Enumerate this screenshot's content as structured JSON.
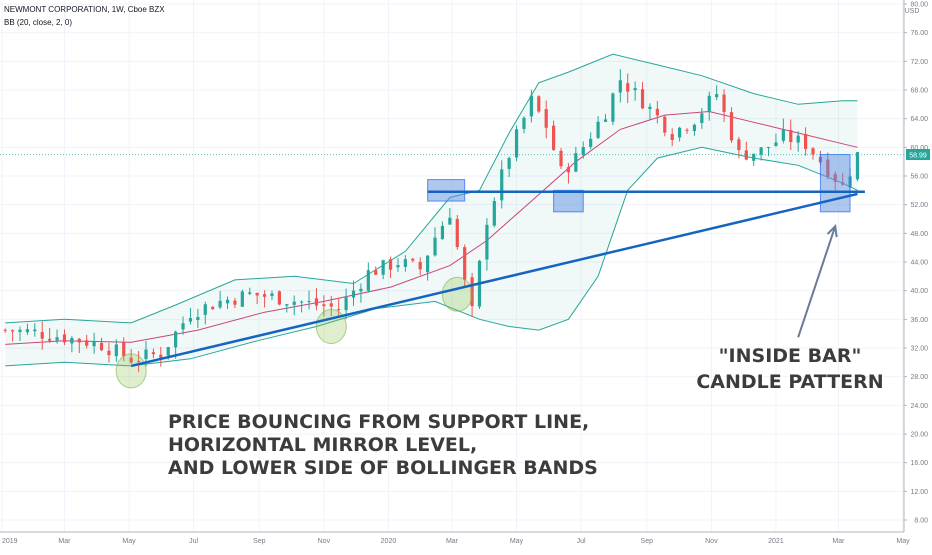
{
  "header": {
    "title": "NEWMONT CORPORATION, 1W, Cboe BZX",
    "indicator": "BB (20, close, 2, 0)"
  },
  "price_axis": {
    "currency": "USD",
    "last_price": "58.99",
    "ticks": [
      "80.00",
      "76.00",
      "72.00",
      "68.00",
      "64.00",
      "60.00",
      "56.00",
      "52.00",
      "48.00",
      "44.00",
      "40.00",
      "36.00",
      "32.00",
      "28.00",
      "24.00",
      "20.00",
      "16.00",
      "12.00",
      "8.00"
    ]
  },
  "time_axis": {
    "labels": [
      "2019",
      "Mar",
      "May",
      "Jul",
      "Sep",
      "Nov",
      "2020",
      "Mar",
      "May",
      "Jul",
      "Sep",
      "Nov",
      "2021",
      "Mar",
      "May"
    ]
  },
  "annotations": {
    "main_text": [
      "PRICE BOUNCING FROM SUPPORT LINE,",
      "HORIZONTAL MIRROR LEVEL,",
      "AND LOWER SIDE OF BOLLINGER BANDS"
    ],
    "pattern_text": [
      "\"INSIDE BAR\"",
      "CANDLE PATTERN"
    ]
  },
  "colors": {
    "up": "#26a69a",
    "down": "#ef5350",
    "band": "#26a69a",
    "basis": "#c2185b",
    "trendline": "#1565c0",
    "box": "#5b8fe0"
  },
  "chart_data": {
    "type": "candlestick",
    "title": "NEWMONT CORPORATION, 1W, Cboe BZX",
    "ylim": [
      6,
      80
    ],
    "y_scale": "linear",
    "grid": true,
    "x_range": [
      "2019-01",
      "2021-05"
    ],
    "close_path": [
      [
        "2019-01-04",
        34.5
      ],
      [
        "2019-02-01",
        34.2
      ],
      [
        "2019-03-01",
        33.5
      ],
      [
        "2019-04-05",
        32.5
      ],
      [
        "2019-05-03",
        30.5
      ],
      [
        "2019-05-31",
        31.2
      ],
      [
        "2019-06-28",
        37.0
      ],
      [
        "2019-07-26",
        38.5
      ],
      [
        "2019-08-23",
        39.5
      ],
      [
        "2019-09-20",
        39.0
      ],
      [
        "2019-10-18",
        38.2
      ],
      [
        "2019-11-15",
        37.5
      ],
      [
        "2019-12-13",
        42.5
      ],
      [
        "2020-01-10",
        44.0
      ],
      [
        "2020-01-31",
        43.0
      ],
      [
        "2020-02-14",
        47.5
      ],
      [
        "2020-02-28",
        51.0
      ],
      [
        "2020-03-13",
        41.0
      ],
      [
        "2020-03-20",
        37.0
      ],
      [
        "2020-04-03",
        50.0
      ],
      [
        "2020-04-24",
        59.0
      ],
      [
        "2020-05-15",
        66.5
      ],
      [
        "2020-05-29",
        63.0
      ],
      [
        "2020-06-12",
        56.5
      ],
      [
        "2020-06-26",
        58.5
      ],
      [
        "2020-07-24",
        65.0
      ],
      [
        "2020-08-07",
        69.5
      ],
      [
        "2020-08-28",
        66.5
      ],
      [
        "2020-09-25",
        62.0
      ],
      [
        "2020-10-16",
        64.0
      ],
      [
        "2020-11-06",
        67.5
      ],
      [
        "2020-11-27",
        59.0
      ],
      [
        "2020-12-18",
        59.5
      ],
      [
        "2021-01-08",
        61.5
      ],
      [
        "2021-01-29",
        60.5
      ],
      [
        "2021-02-19",
        57.0
      ],
      [
        "2021-03-05",
        54.5
      ],
      [
        "2021-03-19",
        58.99
      ]
    ],
    "bollinger": {
      "params": "BB (20, close, 2, 0)",
      "upper": [
        [
          "2019-01-04",
          35.5
        ],
        [
          "2019-03-01",
          36.0
        ],
        [
          "2019-05-03",
          35.5
        ],
        [
          "2019-06-14",
          38.0
        ],
        [
          "2019-08-09",
          41.5
        ],
        [
          "2019-10-04",
          42.0
        ],
        [
          "2019-11-29",
          41.0
        ],
        [
          "2020-01-17",
          45.5
        ],
        [
          "2020-02-28",
          53.0
        ],
        [
          "2020-03-27",
          54.0
        ],
        [
          "2020-04-24",
          62.0
        ],
        [
          "2020-05-22",
          69.0
        ],
        [
          "2020-06-19",
          70.5
        ],
        [
          "2020-07-31",
          73.0
        ],
        [
          "2020-09-11",
          71.5
        ],
        [
          "2020-10-23",
          70.0
        ],
        [
          "2020-12-11",
          67.5
        ],
        [
          "2021-01-22",
          66.0
        ],
        [
          "2021-03-05",
          66.5
        ],
        [
          "2021-03-19",
          66.5
        ]
      ],
      "basis": [
        [
          "2019-01-04",
          32.5
        ],
        [
          "2019-03-01",
          33.0
        ],
        [
          "2019-05-03",
          32.8
        ],
        [
          "2019-07-05",
          34.5
        ],
        [
          "2019-09-06",
          37.0
        ],
        [
          "2019-11-01",
          38.5
        ],
        [
          "2020-01-03",
          40.5
        ],
        [
          "2020-02-28",
          43.5
        ],
        [
          "2020-04-03",
          47.0
        ],
        [
          "2020-05-15",
          52.5
        ],
        [
          "2020-06-26",
          58.0
        ],
        [
          "2020-08-07",
          62.5
        ],
        [
          "2020-09-18",
          64.5
        ],
        [
          "2020-10-30",
          65.0
        ],
        [
          "2020-12-11",
          63.5
        ],
        [
          "2021-01-22",
          62.0
        ],
        [
          "2021-03-05",
          60.5
        ],
        [
          "2021-03-19",
          60.0
        ]
      ],
      "lower": [
        [
          "2019-01-04",
          29.5
        ],
        [
          "2019-03-01",
          30.0
        ],
        [
          "2019-05-03",
          29.5
        ],
        [
          "2019-06-28",
          30.5
        ],
        [
          "2019-08-30",
          33.0
        ],
        [
          "2019-10-25",
          35.0
        ],
        [
          "2019-12-20",
          37.5
        ],
        [
          "2020-02-14",
          38.5
        ],
        [
          "2020-03-27",
          36.0
        ],
        [
          "2020-04-24",
          35.0
        ],
        [
          "2020-05-22",
          34.5
        ],
        [
          "2020-06-19",
          36.0
        ],
        [
          "2020-07-17",
          42.0
        ],
        [
          "2020-08-14",
          54.0
        ],
        [
          "2020-09-11",
          58.5
        ],
        [
          "2020-10-23",
          60.0
        ],
        [
          "2020-12-11",
          58.5
        ],
        [
          "2021-01-22",
          57.5
        ],
        [
          "2021-03-05",
          55.0
        ],
        [
          "2021-03-19",
          54.0
        ]
      ]
    },
    "support_line": [
      [
        "2019-05-03",
        29.5
      ],
      [
        "2021-03-19",
        53.5
      ]
    ],
    "mirror_level": 53.8,
    "mirror_level_range": [
      "2020-02-07",
      "2021-03-26"
    ],
    "highlight_boxes": [
      {
        "x": [
          "2020-02-07",
          "2020-03-13"
        ],
        "y": [
          52.5,
          55.5
        ]
      },
      {
        "x": [
          "2020-06-05",
          "2020-07-03"
        ],
        "y": [
          51.0,
          54.0
        ]
      },
      {
        "x": [
          "2021-02-12",
          "2021-03-12"
        ],
        "y": [
          51.0,
          59.0
        ]
      }
    ],
    "touch_circles": [
      {
        "x": "2019-05-03",
        "y": 28.8
      },
      {
        "x": "2019-11-08",
        "y": 35.0
      },
      {
        "x": "2020-03-06",
        "y": 39.5
      }
    ],
    "pattern_arrow": {
      "from": [
        "2021-01-22",
        33.5
      ],
      "to": [
        "2021-02-26",
        49.0
      ]
    }
  }
}
